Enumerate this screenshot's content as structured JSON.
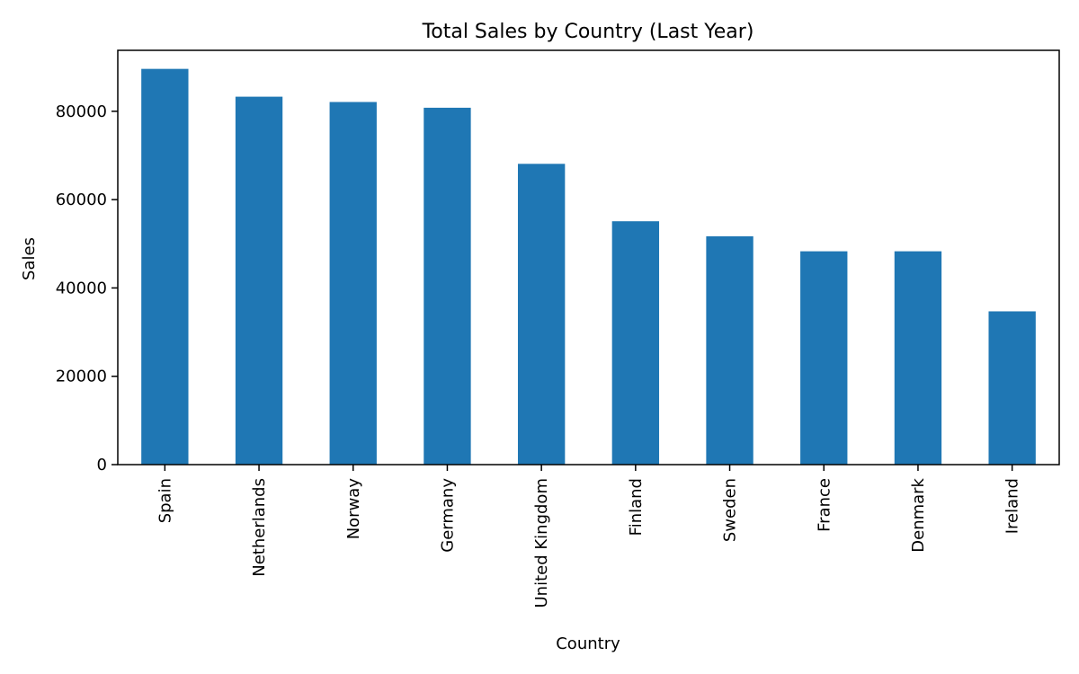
{
  "chart_data": {
    "type": "bar",
    "title": "Total Sales by Country (Last Year)",
    "xlabel": "Country",
    "ylabel": "Sales",
    "categories": [
      "Spain",
      "Netherlands",
      "Norway",
      "Germany",
      "United Kingdom",
      "Finland",
      "Sweden",
      "France",
      "Denmark",
      "Ireland"
    ],
    "values": [
      89600,
      83300,
      82100,
      80800,
      68100,
      55100,
      51700,
      48300,
      48300,
      34700
    ],
    "ylim": [
      0,
      93800
    ],
    "yticks": [
      0,
      20000,
      40000,
      60000,
      80000
    ],
    "grid": false,
    "legend": "none",
    "bar_color": "#1f77b4"
  }
}
